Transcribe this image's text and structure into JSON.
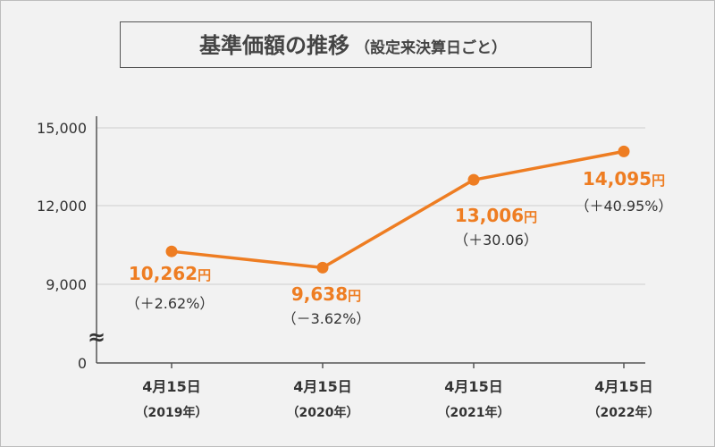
{
  "chart_data": {
    "type": "line",
    "title": "基準価額の推移",
    "subtitle": "（設定来決算日ごと）",
    "xlabel": "",
    "ylabel": "",
    "yticks": [
      "15,000",
      "12,000",
      "9,000",
      "0"
    ],
    "ylim": [
      0,
      15000
    ],
    "broken_axis": true,
    "break_symbol": "≈",
    "grid": true,
    "color": "#ee7d22",
    "categories": [
      {
        "date": "4月15日",
        "year": "（2019年）"
      },
      {
        "date": "4月15日",
        "year": "（2020年）"
      },
      {
        "date": "4月15日",
        "year": "（2021年）"
      },
      {
        "date": "4月15日",
        "year": "（2022年）"
      }
    ],
    "values": [
      10262,
      9638,
      13006,
      14095
    ],
    "value_labels": [
      "10,262",
      "9,638",
      "13,006",
      "14,095"
    ],
    "unit": "円",
    "change_labels": [
      "（＋2.62%）",
      "（－3.62%）",
      "（＋30.06）",
      "（＋40.95%）"
    ]
  }
}
